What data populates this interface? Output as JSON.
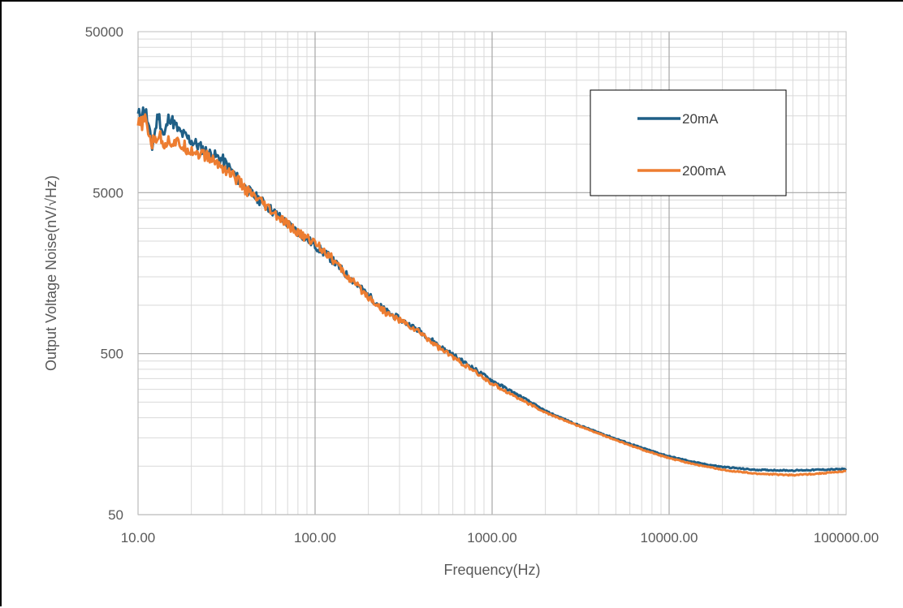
{
  "chart_data": {
    "type": "line",
    "title": "",
    "xlabel": "Frequency(Hz)",
    "ylabel": "Output Voltage Noise(nV/√Hz)",
    "xscale": "log",
    "yscale": "log",
    "xlim": [
      10,
      100000
    ],
    "ylim": [
      50,
      50000
    ],
    "x_tick_labels": [
      "10.00",
      "100.00",
      "1000.00",
      "10000.00",
      "100000.00"
    ],
    "y_tick_labels": [
      "50000",
      "5000",
      "500",
      "50"
    ],
    "grid": true,
    "legend": "top-right",
    "series": [
      {
        "name": "20mA",
        "color": "#1f5f86",
        "x": [
          10,
          11,
          12,
          13,
          14,
          15,
          17,
          20,
          25,
          30,
          35,
          40,
          45,
          50,
          60,
          70,
          80,
          100,
          120,
          150,
          200,
          250,
          300,
          400,
          500,
          700,
          1000,
          1500,
          2000,
          3000,
          5000,
          7000,
          10000,
          15000,
          20000,
          30000,
          50000,
          70000,
          100000
        ],
        "y": [
          15000,
          16500,
          9500,
          15500,
          11000,
          15000,
          12000,
          10500,
          8800,
          8000,
          6500,
          5400,
          4800,
          4400,
          3700,
          3200,
          2850,
          2350,
          2000,
          1550,
          1150,
          920,
          820,
          680,
          560,
          440,
          340,
          265,
          220,
          182,
          148,
          130,
          115,
          104,
          99,
          95,
          94,
          95,
          96
        ]
      },
      {
        "name": "200mA",
        "color": "#ed7d31",
        "x": [
          10,
          11,
          12,
          13,
          14,
          15,
          17,
          20,
          25,
          30,
          35,
          40,
          45,
          50,
          60,
          70,
          80,
          100,
          120,
          150,
          200,
          250,
          300,
          400,
          500,
          700,
          1000,
          1500,
          2000,
          3000,
          5000,
          7000,
          10000,
          15000,
          20000,
          30000,
          50000,
          70000,
          100000
        ],
        "y": [
          13000,
          14000,
          10000,
          11500,
          10200,
          10500,
          10000,
          9200,
          8300,
          7200,
          6300,
          5300,
          4700,
          4300,
          3600,
          3150,
          2800,
          2450,
          2050,
          1530,
          1130,
          900,
          810,
          665,
          545,
          425,
          325,
          255,
          215,
          180,
          145,
          127,
          112,
          101,
          95,
          90,
          88,
          90,
          93
        ]
      }
    ]
  }
}
